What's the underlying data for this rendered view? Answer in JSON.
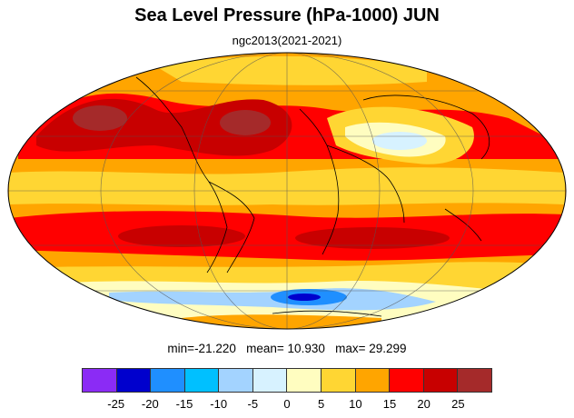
{
  "title": "Sea Level Pressure (hPa-1000) JUN",
  "subtitle": "ngc2013(2021-2021)",
  "stats": {
    "min_label": "min=",
    "min": "-21.220",
    "mean_label": "mean=",
    "mean": "10.930",
    "max_label": "max=",
    "max": "29.299"
  },
  "colorbar": {
    "colors": [
      "#8b2bf5",
      "#0000cd",
      "#1f8fff",
      "#00c0ff",
      "#a3d3ff",
      "#d7f2ff",
      "#fffdc0",
      "#ffd633",
      "#ffa500",
      "#ff0000",
      "#c80000",
      "#a52a2a"
    ],
    "labels": [
      "-25",
      "-20",
      "-15",
      "-10",
      "-5",
      "0",
      "5",
      "10",
      "15",
      "20",
      "25"
    ]
  },
  "map": {
    "projection": "Mollweide",
    "background_color": "#ffa500",
    "field_colors": {
      "orange": "#ffa500",
      "yellow": "#ffd633",
      "pale_yellow": "#fffdc0",
      "light_cyan": "#d7f2ff",
      "light_blue": "#a3d3ff",
      "sky": "#00c0ff",
      "blue": "#1f8fff",
      "dark_blue": "#0000cd",
      "red": "#ff0000",
      "dark_red": "#c80000",
      "brown": "#a52a2a",
      "land": "#000000"
    }
  }
}
